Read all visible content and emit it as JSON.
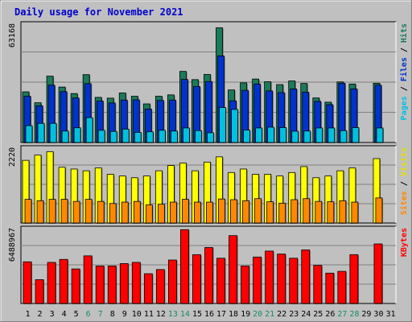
{
  "chart_data": {
    "type": "bar",
    "title": "Daily usage for November 2021",
    "categories": [
      "1",
      "2",
      "3",
      "4",
      "5",
      "6",
      "7",
      "8",
      "9",
      "10",
      "11",
      "12",
      "13",
      "14",
      "15",
      "16",
      "17",
      "18",
      "19",
      "20",
      "21",
      "22",
      "23",
      "24",
      "25",
      "26",
      "27",
      "28",
      "29",
      "30",
      "31"
    ],
    "weekend_days": [
      "6",
      "7",
      "13",
      "14",
      "20",
      "21",
      "27",
      "28"
    ],
    "panels": [
      {
        "id": "hits",
        "max_label": "63168",
        "ylim": [
          0,
          63168
        ],
        "right_labels": [
          {
            "text": "Pages",
            "color": "#00c0e0"
          },
          {
            "text": " / ",
            "color": "#000000"
          },
          {
            "text": "Files",
            "color": "#0033cc"
          },
          {
            "text": " / ",
            "color": "#000000"
          },
          {
            "text": "Hits",
            "color": "#1a7a5a"
          }
        ],
        "series": [
          {
            "name": "Hits",
            "color": "#1a7a5a",
            "values": [
              26500,
              20800,
              34700,
              29000,
              25600,
              35500,
              23600,
              23200,
              25900,
              24200,
              20200,
              24200,
              24900,
              37200,
              32900,
              35600,
              60000,
              27500,
              31200,
              33200,
              31800,
              30300,
              32200,
              30900,
              23300,
              21100,
              31700,
              30600,
              null,
              31000,
              null
            ]
          },
          {
            "name": "Files",
            "color": "#0033cc",
            "values": [
              24200,
              19200,
              30000,
              26600,
              23300,
              30800,
              21700,
              20700,
              22200,
              22300,
              17500,
              22000,
              22200,
              33000,
              29300,
              31900,
              45300,
              21800,
              27300,
              30600,
              27000,
              26100,
              28000,
              26300,
              21500,
              19800,
              31000,
              28000,
              null,
              30000,
              null
            ]
          },
          {
            "name": "Pages",
            "color": "#00c0e0",
            "values": [
              8800,
              10000,
              10000,
              6000,
              7700,
              13000,
              6400,
              5800,
              7000,
              5300,
              5600,
              6400,
              6000,
              7600,
              6200,
              5100,
              18300,
              17300,
              6500,
              7600,
              8000,
              7800,
              5900,
              6000,
              7600,
              7600,
              6200,
              7800,
              null,
              7600,
              null
            ]
          }
        ]
      },
      {
        "id": "visits",
        "max_label": "2220",
        "ylim": [
          0,
          2220
        ],
        "right_labels": [
          {
            "text": "Sites",
            "color": "#ff8800"
          },
          {
            "text": " / ",
            "color": "#000000"
          },
          {
            "text": "Visits",
            "color": "#e0e000"
          }
        ],
        "series": [
          {
            "name": "Visits",
            "color": "#ffff00",
            "values": [
              1800,
              1950,
              2050,
              1600,
              1550,
              1500,
              1580,
              1400,
              1350,
              1300,
              1350,
              1500,
              1650,
              1720,
              1500,
              1750,
              1900,
              1450,
              1550,
              1400,
              1400,
              1350,
              1450,
              1620,
              1300,
              1350,
              1500,
              1580,
              null,
              1850,
              null
            ]
          },
          {
            "name": "Sites",
            "color": "#ff8800",
            "values": [
              680,
              640,
              680,
              680,
              620,
              680,
              620,
              560,
              600,
              620,
              520,
              540,
              600,
              680,
              600,
              600,
              690,
              670,
              640,
              700,
              610,
              570,
              670,
              700,
              620,
              610,
              640,
              600,
              null,
              720,
              null
            ]
          }
        ]
      },
      {
        "id": "kbytes",
        "max_label": "6488967",
        "ylim": [
          0,
          6488967
        ],
        "right_labels": [
          {
            "text": "KBytes",
            "color": "#ff0000"
          }
        ],
        "series": [
          {
            "name": "KBytes",
            "color": "#ff0000",
            "values": [
              3500000,
              2000000,
              3450000,
              3700000,
              2900000,
              4000000,
              3150000,
              3150000,
              3350000,
              3450000,
              2500000,
              2850000,
              3650000,
              6200000,
              4100000,
              4700000,
              3800000,
              5700000,
              3150000,
              3900000,
              4400000,
              4150000,
              3800000,
              4500000,
              3200000,
              2550000,
              2700000,
              4100000,
              null,
              5000000,
              null
            ]
          }
        ]
      }
    ]
  }
}
